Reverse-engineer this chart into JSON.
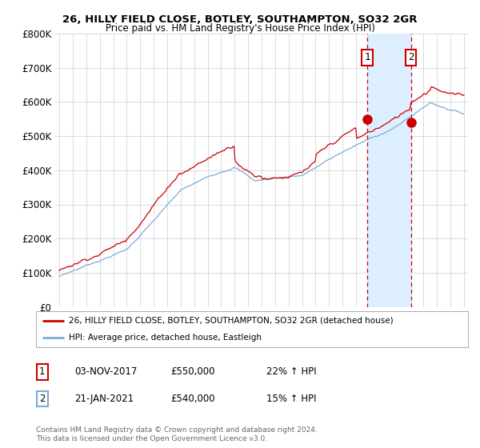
{
  "title": "26, HILLY FIELD CLOSE, BOTLEY, SOUTHAMPTON, SO32 2GR",
  "subtitle": "Price paid vs. HM Land Registry's House Price Index (HPI)",
  "legend_line1": "26, HILLY FIELD CLOSE, BOTLEY, SOUTHAMPTON, SO32 2GR (detached house)",
  "legend_line2": "HPI: Average price, detached house, Eastleigh",
  "annotation1_label": "1",
  "annotation1_date": "03-NOV-2017",
  "annotation1_price": "£550,000",
  "annotation1_hpi": "22% ↑ HPI",
  "annotation2_label": "2",
  "annotation2_date": "21-JAN-2021",
  "annotation2_price": "£540,000",
  "annotation2_hpi": "15% ↑ HPI",
  "footer": "Contains HM Land Registry data © Crown copyright and database right 2024.\nThis data is licensed under the Open Government Licence v3.0.",
  "red_color": "#cc0000",
  "blue_color": "#7aabdb",
  "shade_color": "#ddeeff",
  "ylim": [
    0,
    800000
  ],
  "yticks": [
    0,
    100000,
    200000,
    300000,
    400000,
    500000,
    600000,
    700000,
    800000
  ],
  "ytick_labels": [
    "£0",
    "£100K",
    "£200K",
    "£300K",
    "£400K",
    "£500K",
    "£600K",
    "£700K",
    "£800K"
  ],
  "year_start": 1995,
  "year_end": 2025,
  "sale1_year": 2017.84,
  "sale1_price": 550000,
  "sale2_year": 2021.06,
  "sale2_price": 540000,
  "background_color": "#ffffff",
  "grid_color": "#cccccc"
}
